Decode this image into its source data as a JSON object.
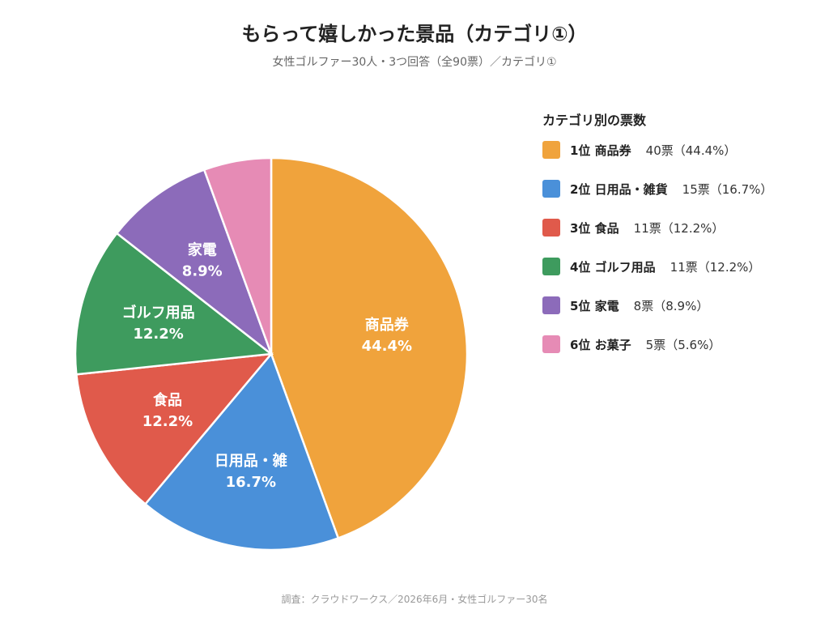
{
  "title": "もらって嬉しかった景品（カテゴリ①）",
  "subtitle": "女性ゴルファー30人・3つ回答（全90票）／カテゴリ①",
  "source": "調査：クラウドワークス／2026年6月・女性ゴルファー30名",
  "chart_data": {
    "type": "pie",
    "title": "もらって嬉しかった景品（カテゴリ①）",
    "legend_title": "カテゴリ別の票数",
    "legend_position": "right",
    "total_votes": 90,
    "slices": [
      {
        "rank": "1位",
        "name": "商品券",
        "slice_label": "商品券",
        "votes": 40,
        "votes_label": "40票",
        "percent": 44.4,
        "percent_label": "44.4%",
        "legend_value": "40票（44.4%）",
        "color": "#F0A33C"
      },
      {
        "rank": "2位",
        "name": "日用品・雑貨",
        "slice_label": "日用品・雑",
        "votes": 15,
        "votes_label": "15票",
        "percent": 16.7,
        "percent_label": "16.7%",
        "legend_value": "15票（16.7%）",
        "color": "#4A90D9"
      },
      {
        "rank": "3位",
        "name": "食品",
        "slice_label": "食品",
        "votes": 11,
        "votes_label": "11票",
        "percent": 12.2,
        "percent_label": "12.2%",
        "legend_value": "11票（12.2%）",
        "color": "#E05A4B"
      },
      {
        "rank": "4位",
        "name": "ゴルフ用品",
        "slice_label": "ゴルフ用品",
        "votes": 11,
        "votes_label": "11票",
        "percent": 12.2,
        "percent_label": "12.2%",
        "legend_value": "11票（12.2%）",
        "color": "#3E9B5E"
      },
      {
        "rank": "5位",
        "name": "家電",
        "slice_label": "家電",
        "votes": 8,
        "votes_label": "8票",
        "percent": 8.9,
        "percent_label": "8.9%",
        "legend_value": "8票（8.9%）",
        "color": "#8C6BBA"
      },
      {
        "rank": "6位",
        "name": "お菓子",
        "slice_label": "",
        "votes": 5,
        "votes_label": "5票",
        "percent": 5.6,
        "percent_label": "",
        "legend_value": "5票（5.6%）",
        "color": "#E68BB5"
      }
    ]
  }
}
